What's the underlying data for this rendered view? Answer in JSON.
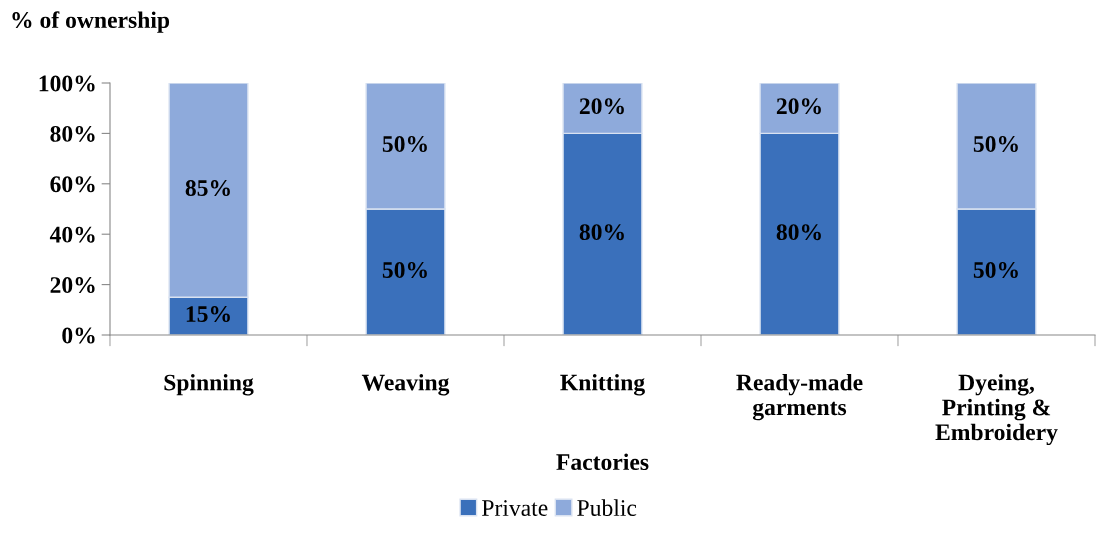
{
  "chart_data": {
    "type": "bar",
    "stacked": true,
    "ylabel": "% of ownership",
    "xlabel": "Factories",
    "categories": [
      "Spinning",
      "Weaving",
      "Knitting",
      "Ready-made\ngarments",
      "Dyeing,\nPrinting &\nEmbroidery"
    ],
    "series": [
      {
        "name": "Private",
        "color": "#3a70bb",
        "values": [
          15,
          50,
          80,
          80,
          50
        ],
        "value_labels": [
          "15%",
          "50%",
          "80%",
          "80%",
          "50%"
        ]
      },
      {
        "name": "Public",
        "color": "#8eaadb",
        "values": [
          85,
          50,
          20,
          20,
          50
        ],
        "value_labels": [
          "85%",
          "50%",
          "20%",
          "20%",
          "50%"
        ]
      }
    ],
    "ylim": [
      0,
      100
    ],
    "yticks": [
      {
        "value": 0,
        "label": "0%"
      },
      {
        "value": 20,
        "label": "20%"
      },
      {
        "value": 40,
        "label": "40%"
      },
      {
        "value": 60,
        "label": "60%"
      },
      {
        "value": 80,
        "label": "80%"
      },
      {
        "value": 100,
        "label": "100%"
      }
    ],
    "grid": false,
    "legend": "bottom"
  }
}
